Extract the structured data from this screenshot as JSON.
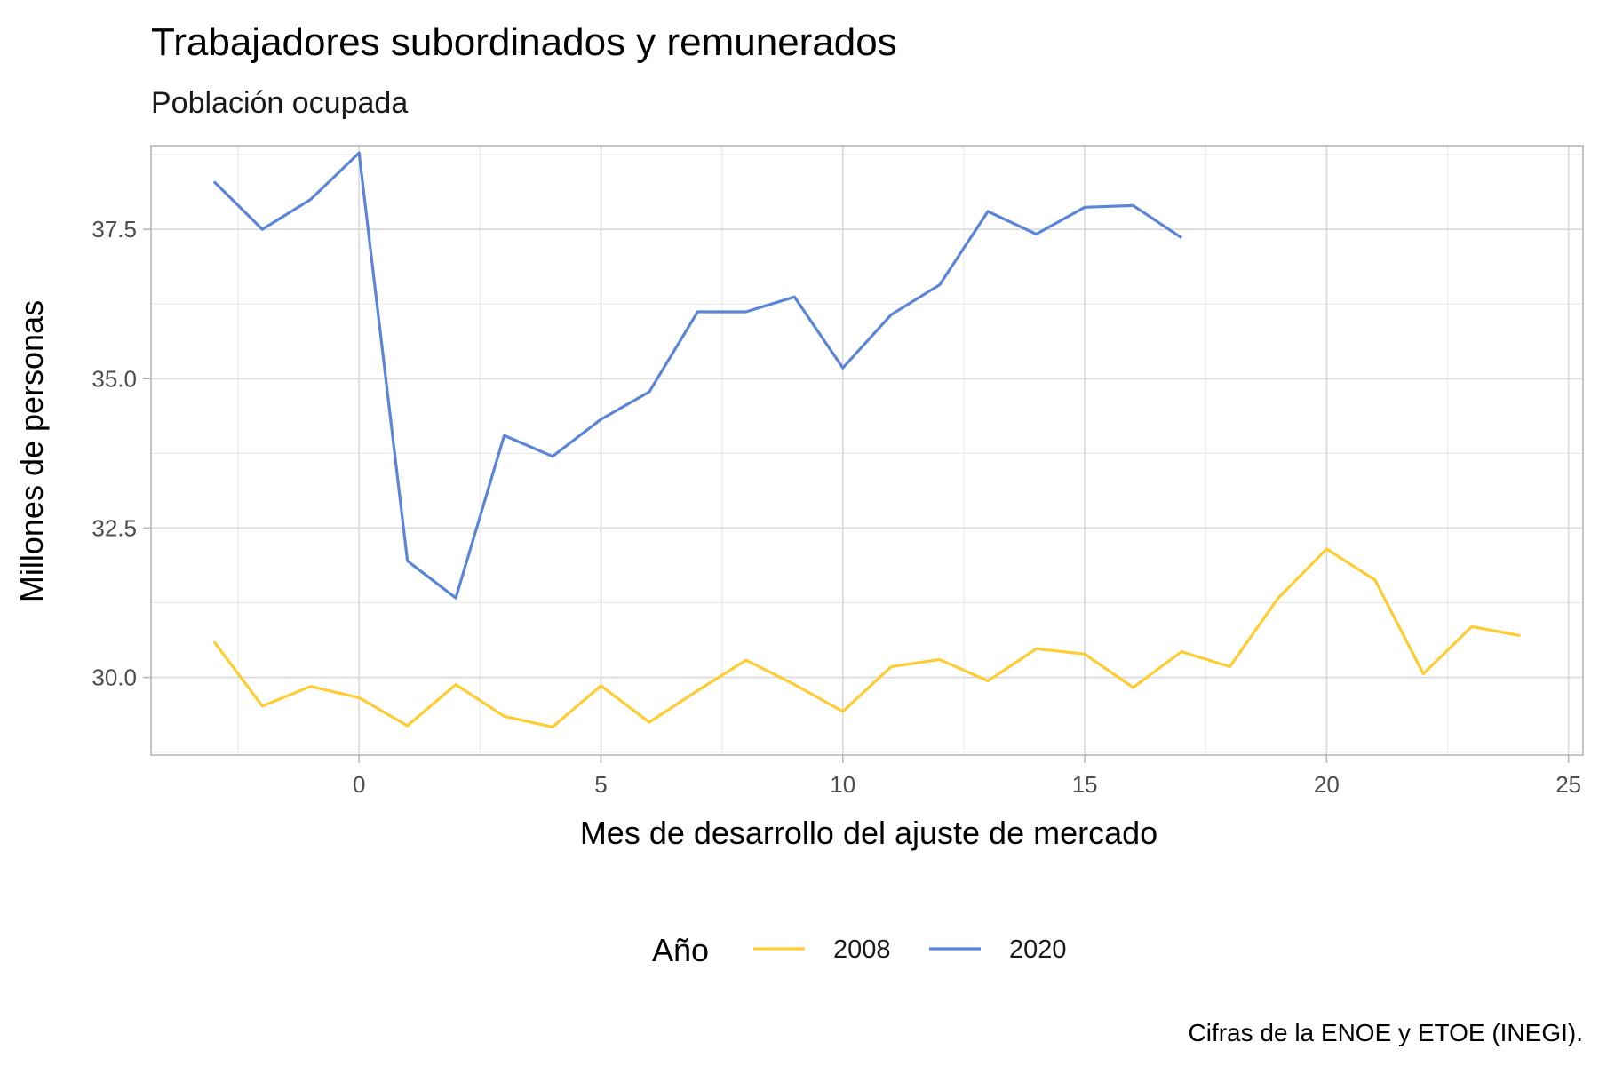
{
  "chart_data": {
    "type": "line",
    "title": "Trabajadores subordinados y remunerados",
    "subtitle": "Población ocupada",
    "xlabel": "Mes de desarrollo del ajuste de mercado",
    "ylabel": "Millones de personas",
    "caption": "Cifras de la ENOE y ETOE (INEGI).",
    "xlim": [
      -4.3,
      25.3
    ],
    "ylim": [
      28.7,
      38.9
    ],
    "x_ticks": [
      0,
      5,
      10,
      15,
      20,
      25
    ],
    "x_tick_labels": [
      "0",
      "5",
      "10",
      "15",
      "20",
      "25"
    ],
    "y_ticks": [
      30.0,
      32.5,
      35.0,
      37.5
    ],
    "y_tick_labels": [
      "30.0",
      "32.5",
      "35.0",
      "37.5"
    ],
    "grid": true,
    "legend": {
      "title": "Año",
      "position": "bottom"
    },
    "series": [
      {
        "name": "2008",
        "color": "#FFCC33",
        "x": [
          -3,
          -2,
          -1,
          0,
          1,
          2,
          3,
          4,
          5,
          6,
          7,
          8,
          9,
          10,
          11,
          12,
          13,
          14,
          15,
          16,
          17,
          18,
          19,
          20,
          21,
          22,
          23,
          24
        ],
        "y": [
          30.6,
          29.52,
          29.85,
          29.66,
          29.19,
          29.88,
          29.35,
          29.17,
          29.86,
          29.25,
          29.78,
          30.29,
          29.88,
          29.43,
          30.18,
          30.3,
          29.94,
          30.48,
          30.39,
          29.83,
          30.43,
          30.18,
          31.33,
          32.15,
          31.63,
          30.06,
          30.85,
          30.7
        ]
      },
      {
        "name": "2020",
        "color": "#5B85D9",
        "x": [
          -3,
          -2,
          -1,
          0,
          1,
          2,
          3,
          4,
          5,
          6,
          7,
          8,
          9,
          10,
          11,
          12,
          13,
          14,
          15,
          16,
          17
        ],
        "y": [
          38.3,
          37.5,
          38.0,
          38.78,
          31.95,
          31.33,
          34.05,
          33.7,
          34.32,
          34.78,
          36.12,
          36.12,
          36.37,
          35.18,
          36.07,
          36.57,
          37.8,
          37.42,
          37.87,
          37.9,
          37.36
        ]
      }
    ]
  }
}
